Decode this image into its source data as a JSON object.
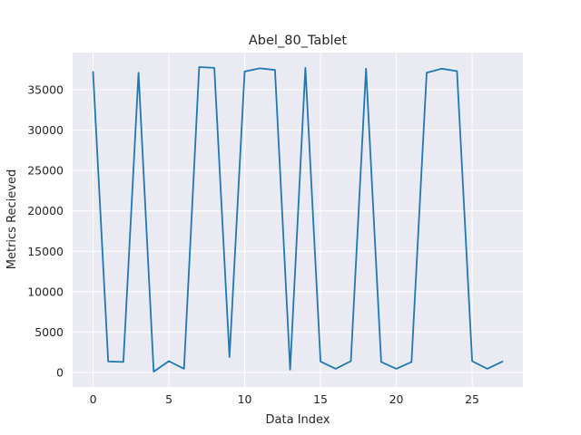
{
  "chart_data": {
    "type": "line",
    "title": "Abel_80_Tablet",
    "xlabel": "Data Index",
    "ylabel": "Metrics Recieved",
    "xlim": [
      -1.35,
      28.35
    ],
    "ylim": [
      -1800,
      39600
    ],
    "xticks": [
      0,
      5,
      10,
      15,
      20,
      25
    ],
    "yticks": [
      0,
      5000,
      10000,
      15000,
      20000,
      25000,
      30000,
      35000
    ],
    "grid": true,
    "series": [
      {
        "color": "#1f77b4",
        "x": [
          0,
          1,
          2,
          3,
          4,
          5,
          6,
          7,
          8,
          9,
          10,
          11,
          12,
          13,
          14,
          15,
          16,
          17,
          18,
          19,
          20,
          21,
          22,
          23,
          24,
          25,
          26,
          27
        ],
        "y": [
          37200,
          1350,
          1300,
          37100,
          100,
          1400,
          450,
          37800,
          37700,
          1900,
          37250,
          37650,
          37450,
          350,
          37700,
          1350,
          450,
          1400,
          37600,
          1300,
          450,
          1300,
          37100,
          37600,
          37300,
          1400,
          450,
          1350
        ]
      }
    ]
  }
}
